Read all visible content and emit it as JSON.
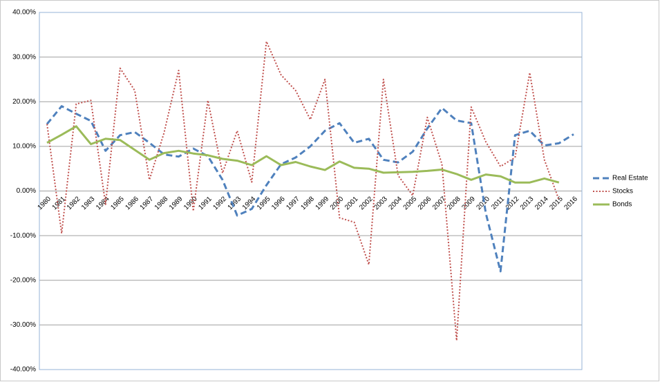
{
  "chart_data": {
    "type": "line",
    "categories": [
      "1980",
      "1981",
      "1982",
      "1983",
      "1984",
      "1985",
      "1986",
      "1987",
      "1988",
      "1989",
      "1990",
      "1991",
      "1992",
      "1993",
      "1994",
      "1995",
      "1996",
      "1997",
      "1998",
      "1999",
      "2000",
      "2001",
      "2002",
      "2003",
      "2004",
      "2005",
      "2006",
      "2007",
      "2008",
      "2009",
      "2010",
      "2011",
      "2012",
      "2013",
      "2014",
      "2015",
      "2016"
    ],
    "series": [
      {
        "name": "Real Estate",
        "color": "#4f81bd",
        "values": [
          15,
          19,
          17.3,
          15.7,
          9,
          12.5,
          13.2,
          10.8,
          8.2,
          7.7,
          9.5,
          7.8,
          2.5,
          -5.5,
          -4,
          1.3,
          6,
          7.5,
          10,
          13.5,
          15.2,
          10.8,
          11.7,
          7,
          6.4,
          8.8,
          14,
          18.6,
          15.8,
          15.2,
          -5,
          -18,
          12.5,
          13.5,
          10.2,
          10.7,
          12.7
        ]
      },
      {
        "name": "Stocks",
        "color": "#c0504d",
        "values": [
          15,
          -9.5,
          19.5,
          20.3,
          -3,
          27.5,
          22.5,
          2.5,
          13,
          27,
          -4.5,
          20.3,
          4,
          13.5,
          2,
          33.5,
          26,
          22.5,
          16,
          25,
          -6,
          -7,
          -16.5,
          25,
          3.5,
          -1,
          16.5,
          6,
          -33.5,
          18.8,
          11,
          5.5,
          7.5,
          26.5,
          7,
          -2,
          null
        ]
      },
      {
        "name": "Bonds",
        "color": "#9bbb59",
        "values": [
          10.8,
          12.6,
          14.5,
          10.5,
          11.7,
          11.4,
          9.2,
          7,
          8.5,
          9,
          8.4,
          8,
          7.2,
          6.8,
          5.8,
          7.8,
          5.8,
          6.5,
          5.5,
          4.7,
          6.6,
          5.2,
          5,
          4.1,
          4.2,
          4.3,
          4.5,
          4.8,
          3.8,
          2.5,
          3.7,
          3.3,
          1.9,
          1.9,
          2.8,
          1.9,
          null
        ]
      }
    ],
    "ylim": [
      -40,
      40
    ],
    "yticks": [
      {
        "value": -40,
        "label": "-40.00%"
      },
      {
        "value": -30,
        "label": "-30.00%"
      },
      {
        "value": -20,
        "label": "-20.00%"
      },
      {
        "value": -10,
        "label": "-10.00%"
      },
      {
        "value": 0,
        "label": "0.00%"
      },
      {
        "value": 10,
        "label": "10.00%"
      },
      {
        "value": 20,
        "label": "20.00%"
      },
      {
        "value": 30,
        "label": "30.00%"
      },
      {
        "value": 40,
        "label": "40.00%"
      }
    ],
    "grid": true,
    "legend": "right"
  }
}
